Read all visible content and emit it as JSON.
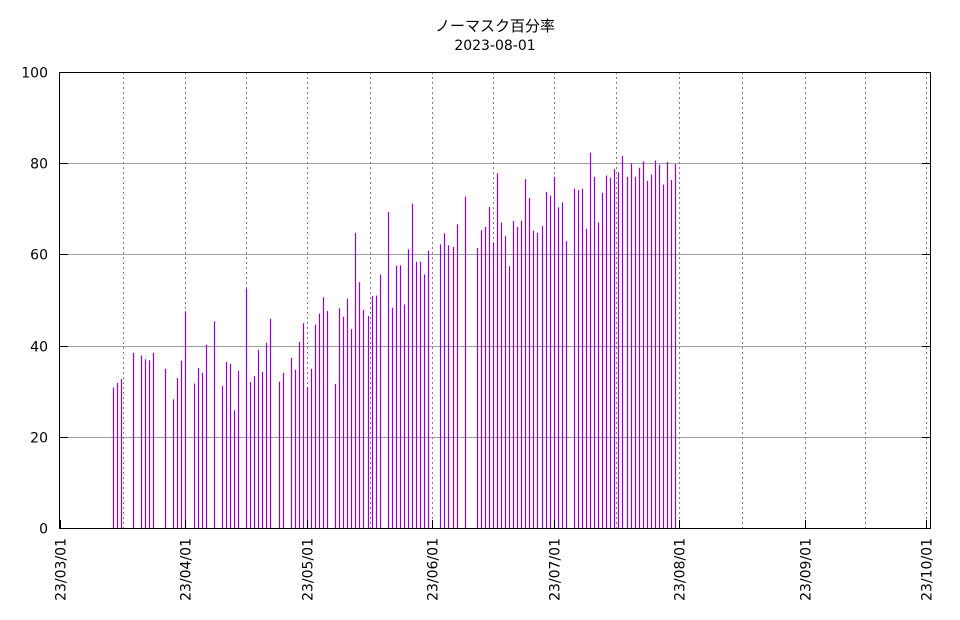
{
  "chart_data": {
    "type": "bar",
    "title": "ノーマスク百分率",
    "subtitle": "2023-08-01",
    "xlabel": "",
    "ylabel": "",
    "x_range": [
      "2023-03-01",
      "2023-10-02"
    ],
    "ylim": [
      0,
      100
    ],
    "y_ticks": [
      0,
      20,
      40,
      60,
      80,
      100
    ],
    "x_ticks": [
      {
        "date": "2023-03-01",
        "label": "23/03/01"
      },
      {
        "date": "2023-04-01",
        "label": "23/04/01"
      },
      {
        "date": "2023-05-01",
        "label": "23/05/01"
      },
      {
        "date": "2023-06-01",
        "label": "23/06/01"
      },
      {
        "date": "2023-07-01",
        "label": "23/07/01"
      },
      {
        "date": "2023-08-01",
        "label": "23/08/01"
      },
      {
        "date": "2023-09-01",
        "label": "23/09/01"
      },
      {
        "date": "2023-10-01",
        "label": "23/10/01"
      }
    ],
    "grid": true,
    "bar_color": "#9400d3",
    "series": [
      {
        "points": [
          [
            "2023-03-14",
            30.8
          ],
          [
            "2023-03-15",
            31.8
          ],
          [
            "2023-03-16",
            32.7
          ],
          [
            "2023-03-19",
            38.4
          ],
          [
            "2023-03-21",
            37.8
          ],
          [
            "2023-03-22",
            37.0
          ],
          [
            "2023-03-23",
            36.8
          ],
          [
            "2023-03-24",
            38.4
          ],
          [
            "2023-03-27",
            34.9
          ],
          [
            "2023-03-29",
            28.2
          ],
          [
            "2023-03-30",
            32.9
          ],
          [
            "2023-03-31",
            36.7
          ],
          [
            "2023-04-01",
            47.5
          ],
          [
            "2023-04-03",
            31.7
          ],
          [
            "2023-04-04",
            35.1
          ],
          [
            "2023-04-05",
            34.0
          ],
          [
            "2023-04-06",
            40.2
          ],
          [
            "2023-04-08",
            45.3
          ],
          [
            "2023-04-10",
            31.1
          ],
          [
            "2023-04-11",
            36.4
          ],
          [
            "2023-04-12",
            36.0
          ],
          [
            "2023-04-13",
            25.8
          ],
          [
            "2023-04-14",
            34.5
          ],
          [
            "2023-04-16",
            52.4
          ],
          [
            "2023-04-17",
            32.0
          ],
          [
            "2023-04-18",
            33.3
          ],
          [
            "2023-04-19",
            39.1
          ],
          [
            "2023-04-20",
            34.2
          ],
          [
            "2023-04-21",
            40.6
          ],
          [
            "2023-04-22",
            45.9
          ],
          [
            "2023-04-24",
            32.1
          ],
          [
            "2023-04-25",
            34.0
          ],
          [
            "2023-04-27",
            37.3
          ],
          [
            "2023-04-28",
            34.7
          ],
          [
            "2023-04-29",
            40.8
          ],
          [
            "2023-04-30",
            44.9
          ],
          [
            "2023-05-01",
            30.9
          ],
          [
            "2023-05-02",
            34.9
          ],
          [
            "2023-05-03",
            44.6
          ],
          [
            "2023-05-04",
            47.0
          ],
          [
            "2023-05-05",
            50.6
          ],
          [
            "2023-05-06",
            47.6
          ],
          [
            "2023-05-08",
            31.6
          ],
          [
            "2023-05-09",
            48.2
          ],
          [
            "2023-05-10",
            46.3
          ],
          [
            "2023-05-11",
            50.3
          ],
          [
            "2023-05-12",
            43.6
          ],
          [
            "2023-05-13",
            64.7
          ],
          [
            "2023-05-14",
            53.9
          ],
          [
            "2023-05-15",
            47.8
          ],
          [
            "2023-05-16",
            46.5
          ],
          [
            "2023-05-17",
            50.9
          ],
          [
            "2023-05-18",
            51.0
          ],
          [
            "2023-05-19",
            55.6
          ],
          [
            "2023-05-21",
            69.3
          ],
          [
            "2023-05-22",
            48.3
          ],
          [
            "2023-05-23",
            57.5
          ],
          [
            "2023-05-24",
            57.6
          ],
          [
            "2023-05-25",
            49.0
          ],
          [
            "2023-05-26",
            61.1
          ],
          [
            "2023-05-27",
            71.1
          ],
          [
            "2023-05-28",
            58.4
          ],
          [
            "2023-05-29",
            58.4
          ],
          [
            "2023-05-30",
            55.6
          ],
          [
            "2023-05-31",
            60.8
          ],
          [
            "2023-06-03",
            62.2
          ],
          [
            "2023-06-04",
            64.6
          ],
          [
            "2023-06-05",
            62.0
          ],
          [
            "2023-06-06",
            61.6
          ],
          [
            "2023-06-07",
            66.6
          ],
          [
            "2023-06-09",
            72.7
          ],
          [
            "2023-06-12",
            61.4
          ],
          [
            "2023-06-13",
            65.3
          ],
          [
            "2023-06-14",
            66.0
          ],
          [
            "2023-06-15",
            70.4
          ],
          [
            "2023-06-16",
            62.5
          ],
          [
            "2023-06-17",
            77.8
          ],
          [
            "2023-06-18",
            67.0
          ],
          [
            "2023-06-19",
            64.0
          ],
          [
            "2023-06-20",
            57.4
          ],
          [
            "2023-06-21",
            67.3
          ],
          [
            "2023-06-22",
            66.0
          ],
          [
            "2023-06-23",
            67.4
          ],
          [
            "2023-06-24",
            76.5
          ],
          [
            "2023-06-25",
            72.4
          ],
          [
            "2023-06-26",
            65.2
          ],
          [
            "2023-06-27",
            64.7
          ],
          [
            "2023-06-28",
            66.2
          ],
          [
            "2023-06-29",
            73.7
          ],
          [
            "2023-06-30",
            72.9
          ],
          [
            "2023-07-01",
            77.0
          ],
          [
            "2023-07-02",
            70.3
          ],
          [
            "2023-07-03",
            71.4
          ],
          [
            "2023-07-04",
            62.9
          ],
          [
            "2023-07-06",
            74.4
          ],
          [
            "2023-07-07",
            74.1
          ],
          [
            "2023-07-08",
            74.4
          ],
          [
            "2023-07-09",
            65.6
          ],
          [
            "2023-07-10",
            82.3
          ],
          [
            "2023-07-11",
            77.0
          ],
          [
            "2023-07-12",
            67.0
          ],
          [
            "2023-07-13",
            73.5
          ],
          [
            "2023-07-14",
            77.3
          ],
          [
            "2023-07-15",
            76.8
          ],
          [
            "2023-07-16",
            78.7
          ],
          [
            "2023-07-17",
            78.0
          ],
          [
            "2023-07-18",
            81.6
          ],
          [
            "2023-07-19",
            77.0
          ],
          [
            "2023-07-20",
            80.0
          ],
          [
            "2023-07-21",
            77.0
          ],
          [
            "2023-07-22",
            79.0
          ],
          [
            "2023-07-23",
            80.4
          ],
          [
            "2023-07-24",
            76.1
          ],
          [
            "2023-07-25",
            77.5
          ],
          [
            "2023-07-26",
            80.6
          ],
          [
            "2023-07-27",
            79.7
          ],
          [
            "2023-07-28",
            75.3
          ],
          [
            "2023-07-29",
            80.3
          ],
          [
            "2023-07-30",
            76.3
          ],
          [
            "2023-07-31",
            79.8
          ]
        ]
      }
    ]
  }
}
